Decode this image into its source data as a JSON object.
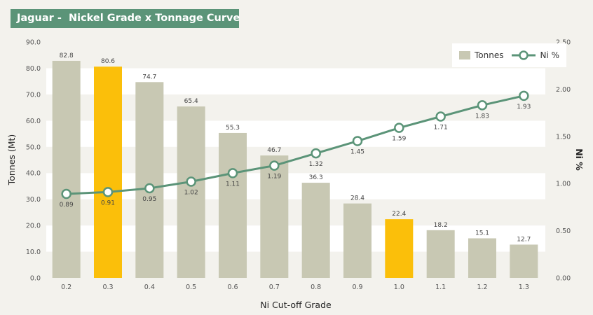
{
  "title": "Jaguar -  Nickel Grade x Tonnage Curve",
  "legend": {
    "bars": "Tonnes",
    "line": "Ni %"
  },
  "colors": {
    "bar": "#c8c8b3",
    "highlight": "#fbbf0a",
    "line": "#5b9478",
    "title_bg": "#5b9478"
  },
  "chart_data": {
    "type": "bar",
    "title": "Jaguar -  Nickel Grade x Tonnage Curve",
    "xlabel": "Ni Cut-off Grade",
    "ylabel": "Tonnes (Mt)",
    "y2label": "Ni %",
    "categories": [
      "0.2",
      "0.3",
      "0.4",
      "0.5",
      "0.6",
      "0.7",
      "0.8",
      "0.9",
      "1.0",
      "1.1",
      "1.2",
      "1.3"
    ],
    "series": [
      {
        "name": "Tonnes",
        "type": "bar",
        "axis": "left",
        "values": [
          82.8,
          80.6,
          74.7,
          65.4,
          55.3,
          46.7,
          36.3,
          28.4,
          22.4,
          18.2,
          15.1,
          12.7
        ],
        "highlighted": [
          "0.3",
          "1.0"
        ]
      },
      {
        "name": "Ni %",
        "type": "line",
        "axis": "right",
        "values": [
          0.89,
          0.91,
          0.95,
          1.02,
          1.11,
          1.19,
          1.32,
          1.45,
          1.59,
          1.71,
          1.83,
          1.93
        ]
      }
    ],
    "ylim": [
      0,
      90
    ],
    "y2lim": [
      0,
      2.5
    ],
    "yticks": [
      "0.0",
      "10.0",
      "20.0",
      "30.0",
      "40.0",
      "50.0",
      "60.0",
      "70.0",
      "80.0",
      "90.0"
    ],
    "y2ticks": [
      "0.00",
      "0.50",
      "1.00",
      "1.50",
      "2.00",
      "2.50"
    ],
    "legend_position": "top-right",
    "grid": "alternating horizontal bands"
  }
}
